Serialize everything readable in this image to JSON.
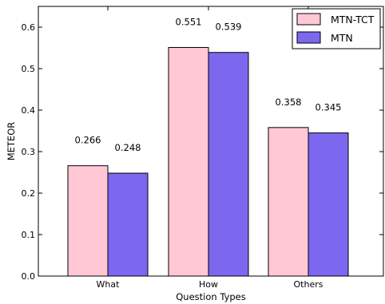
{
  "chart_data": {
    "type": "bar",
    "categories": [
      "What",
      "How",
      "Others"
    ],
    "series": [
      {
        "name": "MTN-TCT",
        "values": [
          0.266,
          0.551,
          0.358
        ],
        "value_labels": [
          "0.266",
          "0.551",
          "0.358"
        ],
        "color": "#ffc8d4"
      },
      {
        "name": "MTN",
        "values": [
          0.248,
          0.539,
          0.345
        ],
        "value_labels": [
          "0.248",
          "0.539",
          "0.345"
        ],
        "color": "#7b68ee"
      }
    ],
    "xlabel": "Question Types",
    "ylabel": "METEOR",
    "ylim": [
      0,
      0.65
    ],
    "yticks": [
      "0.0",
      "0.1",
      "0.2",
      "0.3",
      "0.4",
      "0.5",
      "0.6"
    ],
    "legend_position": "top-right",
    "grid": false
  }
}
